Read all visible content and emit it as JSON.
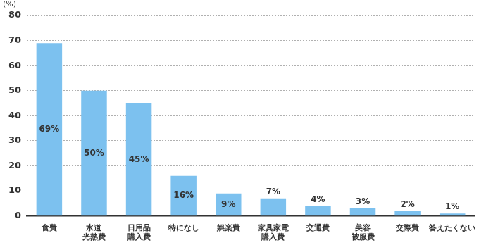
{
  "chart_data": {
    "type": "bar",
    "y_label": "(%)",
    "categories": [
      "食費",
      "水道\n光熱費",
      "日用品\n購入費",
      "特になし",
      "娯楽費",
      "家具家電\n購入費",
      "交通費",
      "美容\n被服費",
      "交際費",
      "答えたくない"
    ],
    "values": [
      69,
      50,
      45,
      16,
      9,
      7,
      4,
      3,
      2,
      1
    ],
    "value_labels": [
      "69%",
      "50%",
      "45%",
      "16%",
      "9%",
      "7%",
      "4%",
      "3%",
      "2%",
      "1%"
    ],
    "color": "#7cc1ef",
    "ylim": [
      0,
      80
    ],
    "yticks": [
      0,
      10,
      20,
      30,
      40,
      50,
      60,
      70,
      80
    ],
    "grid": true,
    "data_labels": true
  }
}
